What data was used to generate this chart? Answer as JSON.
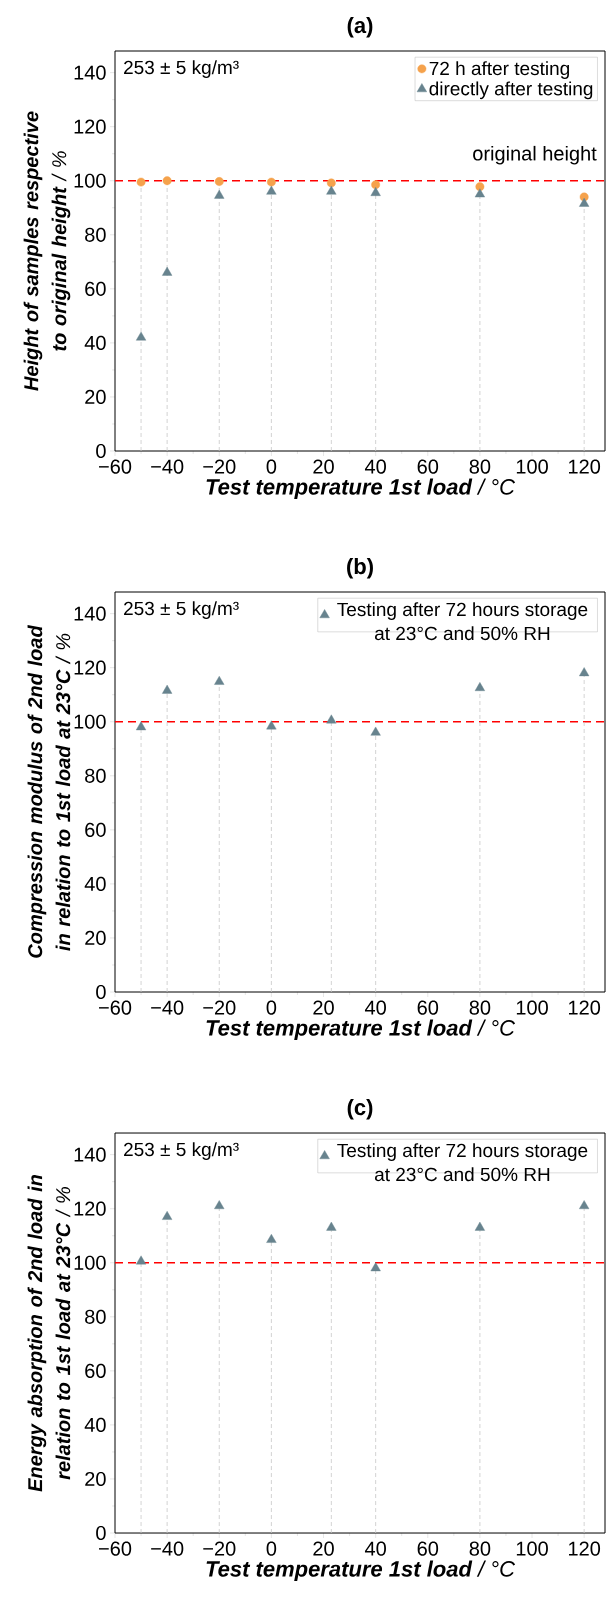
{
  "chart_data": [
    {
      "type": "scatter",
      "title": "**(a)**",
      "xlabel": "**Test temperature 1st load** / °C",
      "ylabel": "**Height of samples respective to original height** / %",
      "x": [
        -50,
        -40,
        -20,
        0,
        23,
        40,
        80,
        120
      ],
      "series": [
        {
          "name": "72 h after testing",
          "color": "#f5a24c",
          "marker": "circle",
          "values": [
            99.5,
            100,
            99.7,
            99.5,
            99.2,
            98.5,
            97.8,
            94
          ]
        },
        {
          "name": "directly after testing",
          "color": "#67838e",
          "marker": "triangle",
          "values": [
            42,
            66,
            94.5,
            96,
            96,
            95.5,
            95,
            91.5
          ]
        }
      ],
      "xlim": [
        -60,
        128
      ],
      "ylim": [
        0,
        148
      ],
      "xticks": [
        {
          "value": -60,
          "label": "−60"
        },
        {
          "value": -40,
          "label": "−40"
        },
        {
          "value": -20,
          "label": "−20"
        },
        0,
        20,
        40,
        60,
        80,
        100,
        120
      ],
      "yticks": [
        0,
        20,
        40,
        60,
        80,
        100,
        120,
        140
      ],
      "ref_lines": [
        {
          "axis": "y",
          "value": 100,
          "label": "original height",
          "color": "#ff0000",
          "line_style": "dashed"
        },
        {
          "axis": "x",
          "value": -50,
          "color": "#c8c8c8",
          "line_style": "dashed"
        },
        {
          "axis": "x",
          "value": -40,
          "color": "#c8c8c8",
          "line_style": "dashed"
        },
        {
          "axis": "x",
          "value": -20,
          "color": "#c8c8c8",
          "line_style": "dashed"
        },
        {
          "axis": "x",
          "value": 0,
          "color": "#c8c8c8",
          "line_style": "dashed"
        },
        {
          "axis": "x",
          "value": 23,
          "color": "#c8c8c8",
          "line_style": "dashed"
        },
        {
          "axis": "x",
          "value": 40,
          "color": "#c8c8c8",
          "line_style": "dashed"
        },
        {
          "axis": "x",
          "value": 80,
          "color": "#c8c8c8",
          "line_style": "dashed"
        },
        {
          "axis": "x",
          "value": 120,
          "color": "#c8c8c8",
          "line_style": "dashed"
        }
      ],
      "annotations": [
        "253 ± 5 kg/m³"
      ],
      "legend": "top right"
    },
    {
      "type": "scatter",
      "title": "**(b)**",
      "xlabel": "**Test temperature 1st load** / °C",
      "ylabel": "**Compression modulus of 2nd load in relation to 1st load at 23°C** / %",
      "x": [
        -50,
        -40,
        -20,
        0,
        23,
        40,
        80,
        120
      ],
      "series": [
        {
          "name": "Testing after 72 hours storage at 23°C and 50% RH",
          "color": "#67838e",
          "marker": "triangle",
          "values": [
            98,
            111.5,
            114.8,
            98.3,
            100.5,
            96,
            112.5,
            118
          ]
        }
      ],
      "xlim": [
        -60,
        128
      ],
      "ylim": [
        0,
        148
      ],
      "xticks": [
        {
          "value": -60,
          "label": "−60"
        },
        {
          "value": -40,
          "label": "−40"
        },
        {
          "value": -20,
          "label": "−20"
        },
        0,
        20,
        40,
        60,
        80,
        100,
        120
      ],
      "yticks": [
        0,
        20,
        40,
        60,
        80,
        100,
        120,
        140
      ],
      "ref_lines": [
        {
          "axis": "y",
          "value": 100,
          "color": "#ff0000",
          "line_style": "dashed"
        },
        {
          "axis": "x",
          "value": -50,
          "color": "#c8c8c8",
          "line_style": "dashed"
        },
        {
          "axis": "x",
          "value": -40,
          "color": "#c8c8c8",
          "line_style": "dashed"
        },
        {
          "axis": "x",
          "value": -20,
          "color": "#c8c8c8",
          "line_style": "dashed"
        },
        {
          "axis": "x",
          "value": 0,
          "color": "#c8c8c8",
          "line_style": "dashed"
        },
        {
          "axis": "x",
          "value": 23,
          "color": "#c8c8c8",
          "line_style": "dashed"
        },
        {
          "axis": "x",
          "value": 40,
          "color": "#c8c8c8",
          "line_style": "dashed"
        },
        {
          "axis": "x",
          "value": 80,
          "color": "#c8c8c8",
          "line_style": "dashed"
        },
        {
          "axis": "x",
          "value": 120,
          "color": "#c8c8c8",
          "line_style": "dashed"
        }
      ],
      "annotations": [
        "253 ± 5 kg/m³"
      ],
      "legend": "top right"
    },
    {
      "type": "scatter",
      "title": "**(c)**",
      "xlabel": "**Test temperature 1st load** / °C",
      "ylabel": "**Energy absorption of 2nd load in relation to 1st load at 23°C** / %",
      "x": [
        -50,
        -40,
        -20,
        0,
        23,
        40,
        80,
        120
      ],
      "series": [
        {
          "name": "Testing after 72 hours storage at 23°C and 50% RH",
          "color": "#67838e",
          "marker": "triangle",
          "values": [
            100.5,
            117,
            121,
            108.5,
            113,
            98,
            113,
            121
          ]
        }
      ],
      "xlim": [
        -60,
        128
      ],
      "ylim": [
        0,
        148
      ],
      "xticks": [
        {
          "value": -60,
          "label": "−60"
        },
        {
          "value": -40,
          "label": "−40"
        },
        {
          "value": -20,
          "label": "−20"
        },
        0,
        20,
        40,
        60,
        80,
        100,
        120
      ],
      "yticks": [
        0,
        20,
        40,
        60,
        80,
        100,
        120,
        140
      ],
      "ref_lines": [
        {
          "axis": "y",
          "value": 100,
          "color": "#ff0000",
          "line_style": "dashed"
        },
        {
          "axis": "x",
          "value": -50,
          "color": "#c8c8c8",
          "line_style": "dashed"
        },
        {
          "axis": "x",
          "value": -40,
          "color": "#c8c8c8",
          "line_style": "dashed"
        },
        {
          "axis": "x",
          "value": -20,
          "color": "#c8c8c8",
          "line_style": "dashed"
        },
        {
          "axis": "x",
          "value": 0,
          "color": "#c8c8c8",
          "line_style": "dashed"
        },
        {
          "axis": "x",
          "value": 23,
          "color": "#c8c8c8",
          "line_style": "dashed"
        },
        {
          "axis": "x",
          "value": 40,
          "color": "#c8c8c8",
          "line_style": "dashed"
        },
        {
          "axis": "x",
          "value": 80,
          "color": "#c8c8c8",
          "line_style": "dashed"
        },
        {
          "axis": "x",
          "value": 120,
          "color": "#c8c8c8",
          "line_style": "dashed"
        }
      ],
      "annotations": [
        "253 ± 5 kg/m³"
      ],
      "legend": "top right"
    }
  ]
}
